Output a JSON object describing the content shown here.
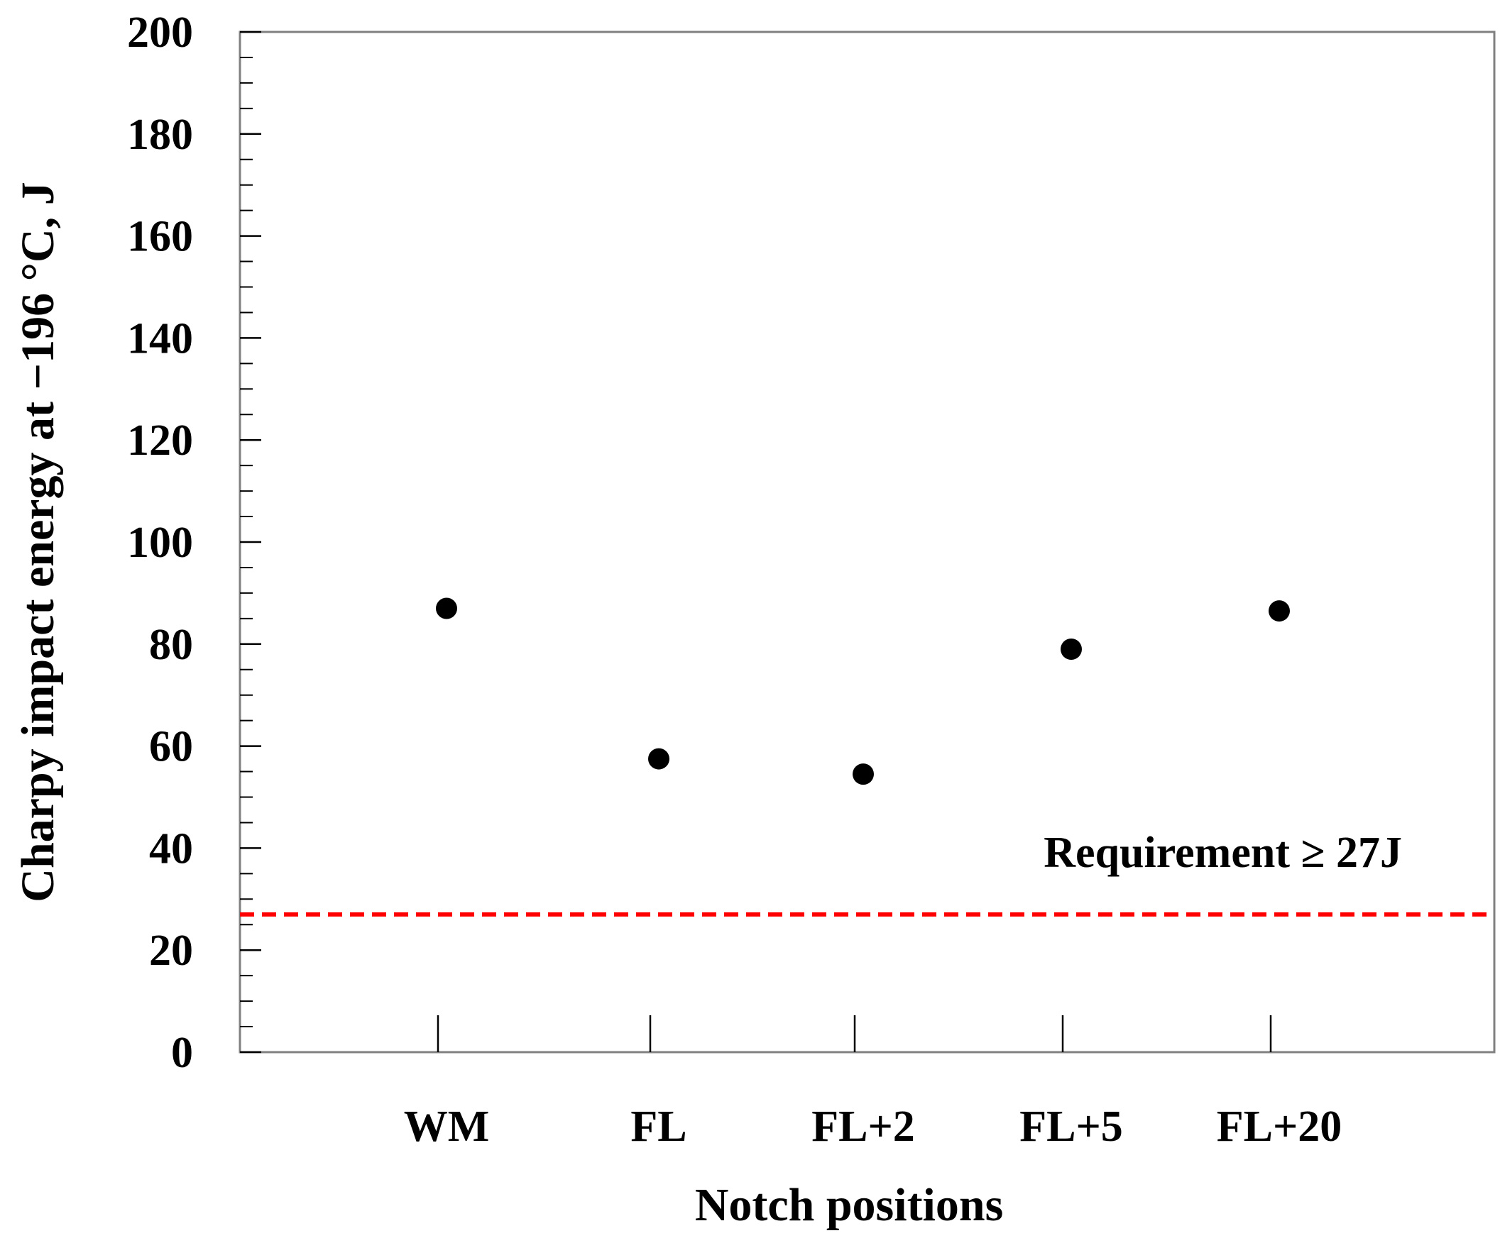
{
  "chart_data": {
    "type": "scatter",
    "categories": [
      "WM",
      "FL",
      "FL+2",
      "FL+5",
      "FL+20"
    ],
    "values": [
      87,
      57.5,
      54.5,
      79,
      86.5
    ],
    "xlabel": "Notch positions",
    "ylabel": "Charpy impact energy at −196 °C, J",
    "ylim": [
      0,
      200
    ],
    "y_ticks": [
      "0",
      "20",
      "40",
      "60",
      "80",
      "100",
      "120",
      "140",
      "160",
      "180",
      "200"
    ],
    "y_minor_step": 5,
    "grid": false,
    "legend": "none",
    "reference_line": {
      "value": 27,
      "label": "Requirement ≥ 27J",
      "color": "#ff0000",
      "style": "dashed"
    },
    "marker_color": "#000000"
  }
}
